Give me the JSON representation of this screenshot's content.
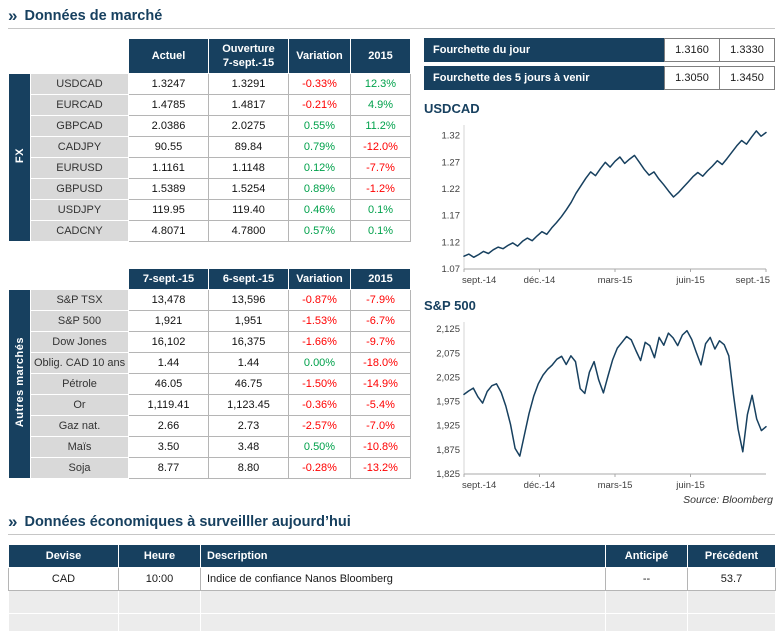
{
  "colors": {
    "navy": "#17405f",
    "red": "#ff0000",
    "green": "#00a14b",
    "label_gray": "#d9d9d9"
  },
  "header1": {
    "title": "Données de marché"
  },
  "header2": {
    "title": "Données économiques à surveilller aujourd’hui"
  },
  "source_note": "Source: Bloomberg",
  "fx_table": {
    "side_label": "FX",
    "headers": [
      "Actuel",
      "Ouverture\n7-sept.-15",
      "Variation",
      "2015"
    ],
    "rows": [
      {
        "label": "USDCAD",
        "actuel": "1.3247",
        "ouverture": "1.3291",
        "variation": "-0.33%",
        "ytd": "12.3%"
      },
      {
        "label": "EURCAD",
        "actuel": "1.4785",
        "ouverture": "1.4817",
        "variation": "-0.21%",
        "ytd": "4.9%"
      },
      {
        "label": "GBPCAD",
        "actuel": "2.0386",
        "ouverture": "2.0275",
        "variation": "0.55%",
        "ytd": "11.2%"
      },
      {
        "label": "CADJPY",
        "actuel": "90.55",
        "ouverture": "89.84",
        "variation": "0.79%",
        "ytd": "-12.0%"
      },
      {
        "label": "EURUSD",
        "actuel": "1.1161",
        "ouverture": "1.1148",
        "variation": "0.12%",
        "ytd": "-7.7%"
      },
      {
        "label": "GBPUSD",
        "actuel": "1.5389",
        "ouverture": "1.5254",
        "variation": "0.89%",
        "ytd": "-1.2%"
      },
      {
        "label": "USDJPY",
        "actuel": "119.95",
        "ouverture": "119.40",
        "variation": "0.46%",
        "ytd": "0.1%"
      },
      {
        "label": "CADCNY",
        "actuel": "4.8071",
        "ouverture": "4.7800",
        "variation": "0.57%",
        "ytd": "0.1%"
      }
    ]
  },
  "markets_table": {
    "side_label": "Autres marchés",
    "headers": [
      "7-sept.-15",
      "6-sept.-15",
      "Variation",
      "2015"
    ],
    "rows": [
      {
        "label": "S&P TSX",
        "d1": "13,478",
        "d2": "13,596",
        "variation": "-0.87%",
        "ytd": "-7.9%"
      },
      {
        "label": "S&P 500",
        "d1": "1,921",
        "d2": "1,951",
        "variation": "-1.53%",
        "ytd": "-6.7%"
      },
      {
        "label": "Dow Jones",
        "d1": "16,102",
        "d2": "16,375",
        "variation": "-1.66%",
        "ytd": "-9.7%"
      },
      {
        "label": "Oblig. CAD 10 ans",
        "d1": "1.44",
        "d2": "1.44",
        "variation": "0.00%",
        "ytd": "-18.0%"
      },
      {
        "label": "Pétrole",
        "d1": "46.05",
        "d2": "46.75",
        "variation": "-1.50%",
        "ytd": "-14.9%"
      },
      {
        "label": "Or",
        "d1": "1,119.41",
        "d2": "1,123.45",
        "variation": "-0.36%",
        "ytd": "-5.4%"
      },
      {
        "label": "Gaz nat.",
        "d1": "2.66",
        "d2": "2.73",
        "variation": "-2.57%",
        "ytd": "-7.0%"
      },
      {
        "label": "Maïs",
        "d1": "3.50",
        "d2": "3.48",
        "variation": "0.50%",
        "ytd": "-10.8%"
      },
      {
        "label": "Soja",
        "d1": "8.77",
        "d2": "8.80",
        "variation": "-0.28%",
        "ytd": "-13.2%"
      }
    ]
  },
  "range_table": {
    "rows": [
      {
        "label": "Fourchette du jour",
        "low": "1.3160",
        "high": "1.3330"
      },
      {
        "label": "Fourchette des 5 jours à venir",
        "low": "1.3050",
        "high": "1.3450"
      }
    ]
  },
  "chart_data": [
    {
      "type": "line",
      "title": "USDCAD",
      "legend": "none",
      "grid": false,
      "ylim": [
        1.07,
        1.34
      ],
      "x_ticks": [
        "sept.-14",
        "déc.-14",
        "mars-15",
        "juin-15",
        "sept.-15"
      ],
      "x_tick_pos": [
        0,
        0.25,
        0.5,
        0.75,
        1
      ],
      "y_ticks": [
        {
          "label": "1.07",
          "value": 1.07
        },
        {
          "label": "1.12",
          "value": 1.12
        },
        {
          "label": "1.17",
          "value": 1.17
        },
        {
          "label": "1.22",
          "value": 1.22
        },
        {
          "label": "1.27",
          "value": 1.27
        },
        {
          "label": "1.32",
          "value": 1.32
        }
      ],
      "values": [
        1.094,
        1.098,
        1.092,
        1.097,
        1.103,
        1.099,
        1.106,
        1.111,
        1.108,
        1.114,
        1.119,
        1.113,
        1.122,
        1.128,
        1.123,
        1.132,
        1.14,
        1.135,
        1.147,
        1.157,
        1.168,
        1.181,
        1.195,
        1.212,
        1.226,
        1.24,
        1.252,
        1.245,
        1.258,
        1.27,
        1.261,
        1.272,
        1.28,
        1.268,
        1.276,
        1.283,
        1.27,
        1.257,
        1.246,
        1.252,
        1.239,
        1.228,
        1.216,
        1.205,
        1.213,
        1.223,
        1.233,
        1.243,
        1.251,
        1.244,
        1.254,
        1.263,
        1.273,
        1.266,
        1.277,
        1.289,
        1.301,
        1.311,
        1.304,
        1.317,
        1.329,
        1.319,
        1.326
      ]
    },
    {
      "type": "line",
      "title": "S&P 500",
      "legend": "none",
      "grid": false,
      "ylim": [
        1825,
        2140
      ],
      "x_ticks": [
        "sept.-14",
        "déc.-14",
        "mars-15",
        "juin-15"
      ],
      "x_tick_pos": [
        0,
        0.25,
        0.5,
        0.75
      ],
      "y_ticks": [
        {
          "label": "1,825",
          "value": 1825
        },
        {
          "label": "1,875",
          "value": 1875
        },
        {
          "label": "1,925",
          "value": 1925
        },
        {
          "label": "1,975",
          "value": 1975
        },
        {
          "label": "2,025",
          "value": 2025
        },
        {
          "label": "2,075",
          "value": 2075
        },
        {
          "label": "2,125",
          "value": 2125
        }
      ],
      "values": [
        1990,
        1997,
        2003,
        1985,
        1972,
        1996,
        2008,
        2012,
        1994,
        1966,
        1928,
        1878,
        1862,
        1906,
        1950,
        1986,
        2012,
        2030,
        2042,
        2051,
        2063,
        2069,
        2052,
        2070,
        2058,
        2002,
        1992,
        2036,
        2058,
        2020,
        1993,
        2028,
        2062,
        2086,
        2098,
        2110,
        2103,
        2081,
        2060,
        2098,
        2091,
        2066,
        2108,
        2092,
        2117,
        2107,
        2091,
        2113,
        2122,
        2104,
        2077,
        2051,
        2095,
        2108,
        2084,
        2101,
        2093,
        2070,
        1989,
        1918,
        1871,
        1948,
        1988,
        1939,
        1915,
        1923
      ]
    }
  ],
  "econ_table": {
    "headers": [
      "Devise",
      "Heure",
      "Description",
      "Anticipé",
      "Précédent"
    ],
    "rows": [
      {
        "devise": "CAD",
        "heure": "10:00",
        "description": "Indice de confiance Nanos Bloomberg",
        "anticipe": "--",
        "precedent": "53.7"
      }
    ]
  }
}
